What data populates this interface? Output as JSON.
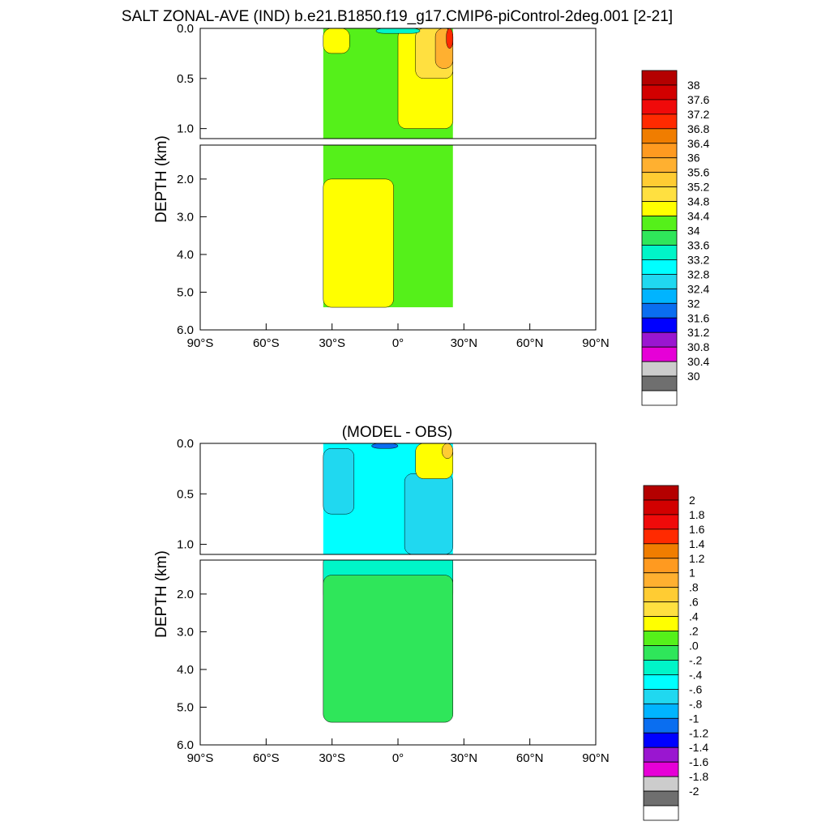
{
  "title": "SALT ZONAL-AVE (IND) b.e21.B1850.f19_g17.CMIP6-piControl-2deg.001 [2-21]",
  "panels": [
    {
      "subtitle": "",
      "ylabel": "DEPTH (km)",
      "yticks": [
        "0.0",
        "0.5",
        "1.0",
        "2.0",
        "3.0",
        "4.0",
        "5.0",
        "6.0"
      ],
      "xticks": [
        "90°S",
        "60°S",
        "30°S",
        "0°",
        "30°N",
        "60°N",
        "90°N"
      ],
      "colorbar": {
        "labels": [
          "38",
          "37.6",
          "37.2",
          "36.8",
          "36.4",
          "36",
          "35.6",
          "35.2",
          "34.8",
          "34.4",
          "34",
          "33.6",
          "33.2",
          "32.8",
          "32.4",
          "32",
          "31.6",
          "31.2",
          "30.8",
          "30.4",
          "30"
        ]
      }
    },
    {
      "subtitle": "(MODEL - OBS)",
      "ylabel": "DEPTH (km)",
      "yticks": [
        "0.0",
        "0.5",
        "1.0",
        "2.0",
        "3.0",
        "4.0",
        "5.0",
        "6.0"
      ],
      "xticks": [
        "90°S",
        "60°S",
        "30°S",
        "0°",
        "30°N",
        "60°N",
        "90°N"
      ],
      "colorbar": {
        "labels": [
          "2",
          "1.8",
          "1.6",
          "1.4",
          "1.2",
          "1",
          ".8",
          ".6",
          ".4",
          ".2",
          ".0",
          "-.2",
          "-.4",
          "-.6",
          "-.8",
          "-1",
          "-1.2",
          "-1.4",
          "-1.6",
          "-1.8",
          "-2"
        ]
      }
    }
  ],
  "colors": {
    "scale": [
      "#ffffff",
      "#6f6f6f",
      "#cccccc",
      "#e600d7",
      "#9a16d0",
      "#0000ff",
      "#0a6ef0",
      "#00b4ff",
      "#20d8f0",
      "#00ffff",
      "#00f5c8",
      "#2fe65a",
      "#55f01a",
      "#ffff00",
      "#ffe040",
      "#ffcc33",
      "#ffb030",
      "#ff9a20",
      "#f07d00",
      "#ff2a00",
      "#f00a0a",
      "#d20000",
      "#b40000"
    ]
  },
  "chart_data": [
    {
      "type": "contour",
      "title": "SALT ZONAL-AVE (IND) b.e21.B1850.f19_g17.CMIP6-piControl-2deg.001 [2-21]",
      "subtitle": "",
      "xlabel": "",
      "ylabel": "DEPTH (km)",
      "xlim": [
        -90,
        90
      ],
      "ylim_upper": [
        0,
        1.1
      ],
      "ylim_lower": [
        1.1,
        6.0
      ],
      "levels": [
        30,
        30.4,
        30.8,
        31.2,
        31.6,
        32,
        32.4,
        32.8,
        33.2,
        33.6,
        34,
        34.4,
        34.8,
        35.2,
        35.6,
        36,
        36.4,
        36.8,
        37.2,
        37.6,
        38
      ],
      "basin_lat_range": [
        -34,
        25
      ],
      "max_depth_km": 5.4,
      "regions": [
        {
          "value_range": [
            34.4,
            34.8
          ],
          "lat_range": [
            -34,
            25
          ],
          "depth_km": [
            0,
            5.4
          ],
          "description": "background"
        },
        {
          "value_range": [
            34.8,
            35.2
          ],
          "lat_range": [
            -34,
            -2
          ],
          "depth_km": [
            2.0,
            5.4
          ]
        },
        {
          "value_range": [
            34.8,
            35.2
          ],
          "lat_range": [
            -34,
            -22
          ],
          "depth_km": [
            0,
            0.25
          ]
        },
        {
          "value_range": [
            34.8,
            35.2
          ],
          "lat_range": [
            0,
            25
          ],
          "depth_km": [
            0,
            1.0
          ]
        },
        {
          "value_range": [
            35.2,
            35.6
          ],
          "lat_range": [
            8,
            25
          ],
          "depth_km": [
            0,
            0.5
          ]
        },
        {
          "value_range": [
            35.6,
            36.4
          ],
          "lat_range": [
            17,
            25
          ],
          "depth_km": [
            0,
            0.4
          ]
        },
        {
          "value_range": [
            36.8,
            37.6
          ],
          "lat_range": [
            22,
            25
          ],
          "depth_km": [
            0,
            0.2
          ]
        },
        {
          "value_range": [
            33.2,
            34.0
          ],
          "lat_range": [
            -10,
            10
          ],
          "depth_km": [
            0,
            0.05
          ]
        }
      ]
    },
    {
      "type": "contour",
      "title": "(MODEL - OBS)",
      "subtitle": "(MODEL - OBS)",
      "xlabel": "",
      "ylabel": "DEPTH (km)",
      "xlim": [
        -90,
        90
      ],
      "ylim_upper": [
        0,
        1.1
      ],
      "ylim_lower": [
        1.1,
        6.0
      ],
      "levels": [
        -2,
        -1.8,
        -1.6,
        -1.4,
        -1.2,
        -1,
        -0.8,
        -0.6,
        -0.4,
        -0.2,
        0,
        0.2,
        0.4,
        0.6,
        0.8,
        1,
        1.2,
        1.4,
        1.6,
        1.8,
        2
      ],
      "basin_lat_range": [
        -34,
        25
      ],
      "max_depth_km": 5.4,
      "regions": [
        {
          "value_range": [
            -0.4,
            -0.2
          ],
          "lat_range": [
            -34,
            25
          ],
          "depth_km": [
            0,
            1.1
          ],
          "description": "upper background"
        },
        {
          "value_range": [
            -0.6,
            -0.4
          ],
          "lat_range": [
            -34,
            -20
          ],
          "depth_km": [
            0.05,
            0.7
          ]
        },
        {
          "value_range": [
            -0.6,
            -0.4
          ],
          "lat_range": [
            3,
            25
          ],
          "depth_km": [
            0.3,
            1.1
          ]
        },
        {
          "value_range": [
            -0.2,
            0.0
          ],
          "lat_range": [
            -34,
            25
          ],
          "depth_km": [
            1.1,
            2.2
          ]
        },
        {
          "value_range": [
            0.0,
            0.2
          ],
          "lat_range": [
            -34,
            25
          ],
          "depth_km": [
            1.5,
            5.4
          ]
        },
        {
          "value_range": [
            -1.2,
            -0.8
          ],
          "lat_range": [
            -12,
            0
          ],
          "depth_km": [
            0,
            0.05
          ]
        },
        {
          "value_range": [
            0.2,
            0.6
          ],
          "lat_range": [
            8,
            25
          ],
          "depth_km": [
            0,
            0.35
          ]
        },
        {
          "value_range": [
            0.6,
            1.0
          ],
          "lat_range": [
            20,
            25
          ],
          "depth_km": [
            0,
            0.15
          ]
        }
      ]
    }
  ]
}
